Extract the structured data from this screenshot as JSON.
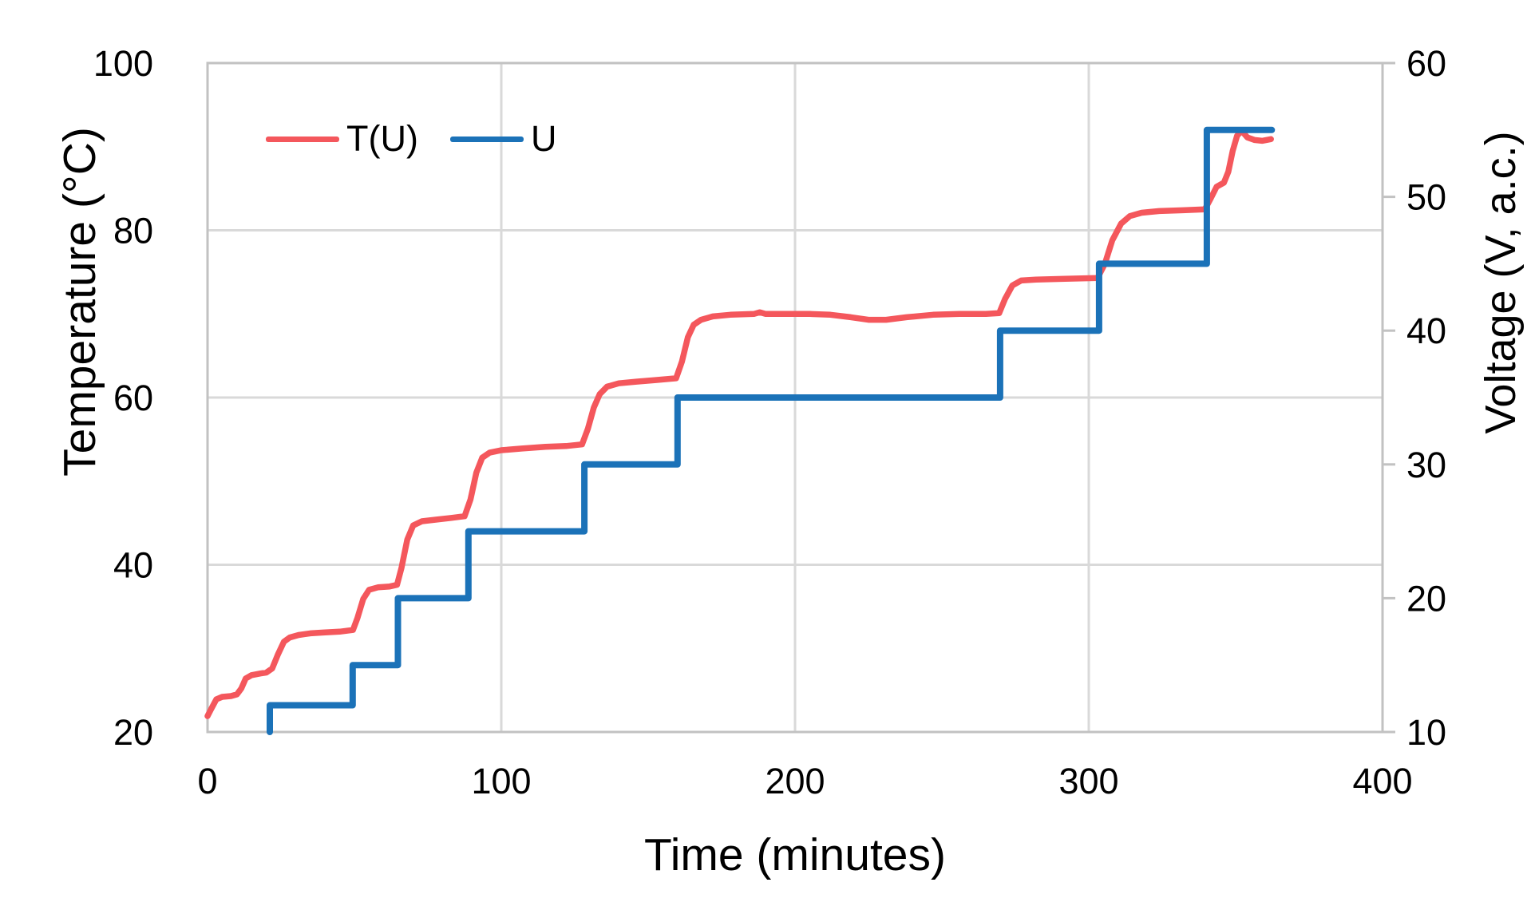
{
  "chart_data": {
    "type": "line",
    "title": "",
    "x_axis": {
      "label": "Time (minutes)",
      "min": 0,
      "max": 400,
      "ticks": [
        0,
        100,
        200,
        300,
        400
      ],
      "gridline_ticks": [
        100,
        200,
        300
      ]
    },
    "y_axis_left": {
      "label": "Temperature (°C)",
      "min": 20,
      "max": 100,
      "ticks": [
        100,
        80,
        60,
        40,
        20
      ],
      "gridline_ticks": [
        40,
        60,
        80
      ]
    },
    "y_axis_right": {
      "label": "Voltage (V, a.c.)",
      "min": 10,
      "max": 60,
      "ticks": [
        60,
        50,
        40,
        30,
        20,
        10
      ]
    },
    "legend": {
      "position": "top-left-inside"
    },
    "grid": true,
    "series": [
      {
        "name": "T(U)",
        "axis": "left",
        "color": "#f4575c",
        "points": [
          [
            0,
            21.9
          ],
          [
            1,
            22.6
          ],
          [
            3,
            23.9
          ],
          [
            5,
            24.2
          ],
          [
            8,
            24.3
          ],
          [
            10,
            24.5
          ],
          [
            11.5,
            25.2
          ],
          [
            13,
            26.4
          ],
          [
            15,
            26.8
          ],
          [
            18,
            27.0
          ],
          [
            20,
            27.1
          ],
          [
            22,
            27.6
          ],
          [
            24,
            29.3
          ],
          [
            26,
            30.8
          ],
          [
            28,
            31.3
          ],
          [
            31,
            31.6
          ],
          [
            35,
            31.8
          ],
          [
            40,
            31.9
          ],
          [
            45,
            32.0
          ],
          [
            49.5,
            32.2
          ],
          [
            51,
            33.6
          ],
          [
            53,
            35.9
          ],
          [
            55,
            37.0
          ],
          [
            58,
            37.3
          ],
          [
            62,
            37.4
          ],
          [
            64.5,
            37.6
          ],
          [
            66,
            39.6
          ],
          [
            68,
            43.0
          ],
          [
            70,
            44.7
          ],
          [
            73,
            45.2
          ],
          [
            78,
            45.4
          ],
          [
            83,
            45.6
          ],
          [
            87.5,
            45.8
          ],
          [
            89.5,
            47.8
          ],
          [
            91.5,
            51.0
          ],
          [
            93.5,
            52.8
          ],
          [
            96,
            53.4
          ],
          [
            100,
            53.7
          ],
          [
            107,
            53.9
          ],
          [
            115,
            54.1
          ],
          [
            122,
            54.2
          ],
          [
            127.5,
            54.4
          ],
          [
            129.5,
            56.3
          ],
          [
            131.5,
            58.8
          ],
          [
            133.5,
            60.4
          ],
          [
            136,
            61.3
          ],
          [
            140,
            61.7
          ],
          [
            146,
            61.9
          ],
          [
            153,
            62.1
          ],
          [
            159.5,
            62.3
          ],
          [
            161.5,
            64.3
          ],
          [
            163.5,
            67.2
          ],
          [
            165.5,
            68.7
          ],
          [
            168,
            69.3
          ],
          [
            172,
            69.7
          ],
          [
            178,
            69.9
          ],
          [
            186,
            70.0
          ],
          [
            188,
            70.2
          ],
          [
            190,
            70.0
          ],
          [
            196,
            70.0
          ],
          [
            205,
            70.0
          ],
          [
            212,
            69.9
          ],
          [
            219,
            69.6
          ],
          [
            225,
            69.3
          ],
          [
            231,
            69.3
          ],
          [
            238,
            69.6
          ],
          [
            247,
            69.9
          ],
          [
            256,
            70.0
          ],
          [
            265,
            70.0
          ],
          [
            269.5,
            70.1
          ],
          [
            271.5,
            71.8
          ],
          [
            274,
            73.4
          ],
          [
            277,
            74.0
          ],
          [
            282,
            74.1
          ],
          [
            292,
            74.2
          ],
          [
            303,
            74.3
          ],
          [
            305.5,
            76.0
          ],
          [
            308,
            78.8
          ],
          [
            311,
            80.8
          ],
          [
            314,
            81.7
          ],
          [
            318,
            82.1
          ],
          [
            324,
            82.3
          ],
          [
            332,
            82.4
          ],
          [
            339.5,
            82.5
          ],
          [
            341.5,
            83.8
          ],
          [
            343.5,
            85.2
          ],
          [
            346,
            85.7
          ],
          [
            347.5,
            87.0
          ],
          [
            349,
            89.5
          ],
          [
            350.5,
            91.3
          ],
          [
            352,
            91.9
          ],
          [
            354,
            91.1
          ],
          [
            356.5,
            90.8
          ],
          [
            359,
            90.7
          ],
          [
            362,
            90.9
          ]
        ]
      },
      {
        "name": "U",
        "axis": "right",
        "color": "#1b72b8",
        "points": [
          [
            21.2,
            10
          ],
          [
            21.2,
            12
          ],
          [
            49.4,
            12
          ],
          [
            49.4,
            15
          ],
          [
            64.8,
            15
          ],
          [
            64.8,
            20
          ],
          [
            88.8,
            20
          ],
          [
            88.8,
            25
          ],
          [
            128.3,
            25
          ],
          [
            128.3,
            30
          ],
          [
            160,
            30
          ],
          [
            160,
            35
          ],
          [
            269.8,
            35
          ],
          [
            269.8,
            40
          ],
          [
            303.5,
            40
          ],
          [
            303.5,
            45
          ],
          [
            340.2,
            45
          ],
          [
            340.2,
            55
          ],
          [
            362.3,
            55
          ]
        ]
      }
    ]
  },
  "colors": {
    "background": "#ffffff",
    "gridline": "#d9d9d9",
    "axis_line": "#c2c2c2",
    "tick_text": "#000000"
  }
}
